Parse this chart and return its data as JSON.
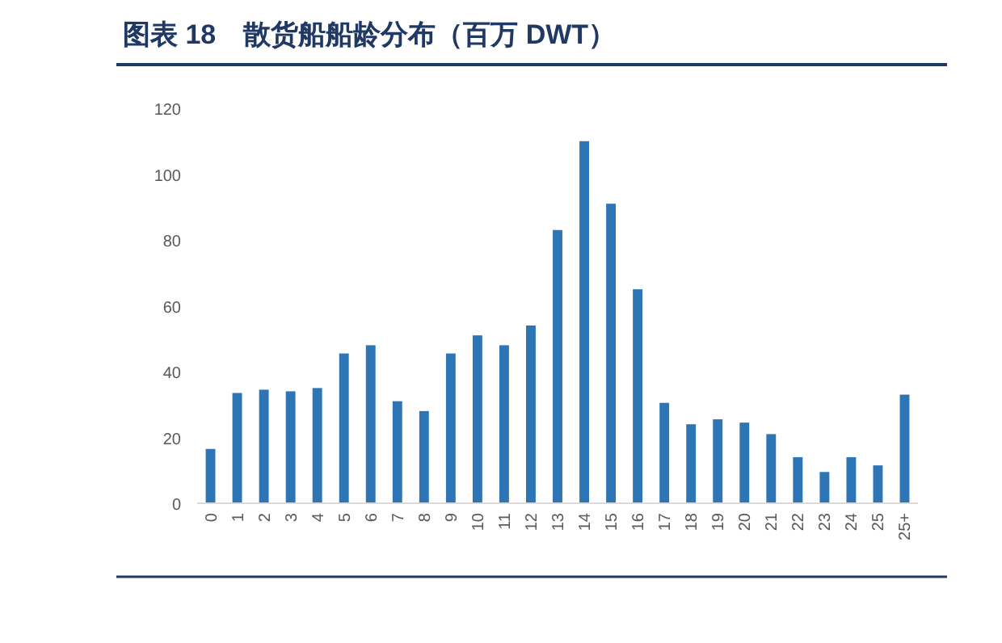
{
  "chart_data": {
    "type": "bar",
    "title": "图表 18　散货船船龄分布（百万 DWT）",
    "categories": [
      "0",
      "1",
      "2",
      "3",
      "4",
      "5",
      "6",
      "7",
      "8",
      "9",
      "10",
      "11",
      "12",
      "13",
      "14",
      "15",
      "16",
      "17",
      "18",
      "19",
      "20",
      "21",
      "22",
      "23",
      "24",
      "25",
      "25+"
    ],
    "values": [
      16.5,
      33.5,
      34.5,
      34,
      35,
      45.5,
      48,
      31,
      28,
      45.5,
      51,
      48,
      54,
      83,
      110,
      91,
      65,
      30.5,
      24,
      25.5,
      24.5,
      21,
      14,
      9.5,
      14,
      11.5,
      33
    ],
    "color": "#2e75b6",
    "ylim": [
      0,
      120
    ],
    "yticks": [
      0,
      20,
      40,
      60,
      80,
      100,
      120
    ],
    "grid": false
  }
}
